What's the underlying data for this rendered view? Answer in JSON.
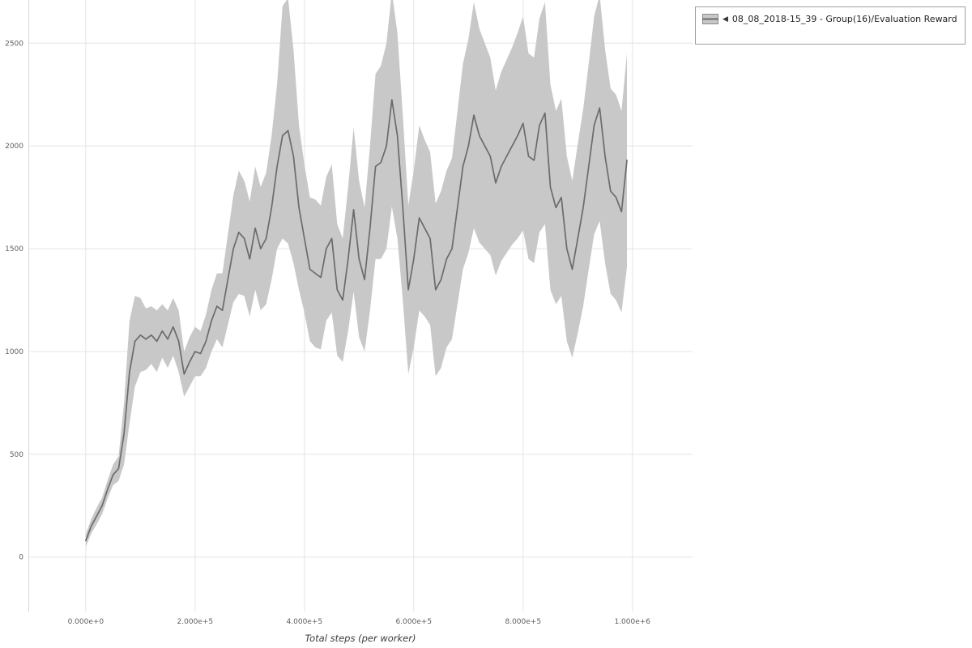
{
  "legend": {
    "collapse_icon": "◀",
    "label": "08_08_2018-15_39 - Group(16)/Evaluation Reward"
  },
  "colors": {
    "grid": "#e4e4e4",
    "spine": "#d8d8d8",
    "tick_text": "#606060",
    "axis_title": "#3c3c3c",
    "legend_border": "#9e9e9e",
    "line": "#6b6b6b",
    "band": "#c8c8c8"
  },
  "chart_data": {
    "type": "line",
    "title": "",
    "xlabel": "Total steps (per worker)",
    "ylabel": "",
    "grid": true,
    "legend_position": "top-right",
    "xlim": [
      -105000,
      1110000
    ],
    "ylim": [
      -265,
      2710
    ],
    "x_ticks": [
      {
        "value": 0,
        "label": "0.000e+0"
      },
      {
        "value": 200000,
        "label": "2.000e+5"
      },
      {
        "value": 400000,
        "label": "4.000e+5"
      },
      {
        "value": 600000,
        "label": "6.000e+5"
      },
      {
        "value": 800000,
        "label": "8.000e+5"
      },
      {
        "value": 1000000,
        "label": "1.000e+6"
      }
    ],
    "y_ticks": [
      {
        "value": 0,
        "label": "0"
      },
      {
        "value": 500,
        "label": "500"
      },
      {
        "value": 1000,
        "label": "1000"
      },
      {
        "value": 1500,
        "label": "1500"
      },
      {
        "value": 2000,
        "label": "2000"
      },
      {
        "value": 2500,
        "label": "2500"
      }
    ],
    "series": [
      {
        "name": "08_08_2018-15_39 - Group(16)/Evaluation Reward",
        "line_color": "#6b6b6b",
        "band_color": "#c8c8c8",
        "x": [
          0,
          10000,
          20000,
          30000,
          40000,
          50000,
          60000,
          70000,
          80000,
          90000,
          100000,
          110000,
          120000,
          130000,
          140000,
          150000,
          160000,
          170000,
          180000,
          190000,
          200000,
          210000,
          220000,
          230000,
          240000,
          250000,
          260000,
          270000,
          280000,
          290000,
          300000,
          310000,
          320000,
          330000,
          340000,
          350000,
          360000,
          370000,
          380000,
          390000,
          400000,
          410000,
          420000,
          430000,
          440000,
          450000,
          460000,
          470000,
          480000,
          490000,
          500000,
          510000,
          520000,
          530000,
          540000,
          550000,
          560000,
          570000,
          580000,
          590000,
          600000,
          610000,
          620000,
          630000,
          640000,
          650000,
          660000,
          670000,
          680000,
          690000,
          700000,
          710000,
          720000,
          730000,
          740000,
          750000,
          760000,
          770000,
          780000,
          790000,
          800000,
          810000,
          820000,
          830000,
          840000,
          850000,
          860000,
          870000,
          880000,
          890000,
          900000,
          910000,
          920000,
          930000,
          940000,
          950000,
          960000,
          970000,
          980000,
          990000
        ],
        "mean": [
          80,
          150,
          200,
          250,
          330,
          400,
          430,
          600,
          900,
          1050,
          1080,
          1060,
          1080,
          1050,
          1100,
          1060,
          1120,
          1050,
          890,
          950,
          1000,
          990,
          1050,
          1150,
          1220,
          1200,
          1350,
          1500,
          1580,
          1550,
          1450,
          1600,
          1500,
          1550,
          1700,
          1900,
          2050,
          2075,
          1950,
          1700,
          1550,
          1400,
          1380,
          1360,
          1500,
          1550,
          1300,
          1250,
          1450,
          1690,
          1450,
          1350,
          1600,
          1900,
          1920,
          2000,
          2225,
          2050,
          1700,
          1300,
          1450,
          1650,
          1600,
          1550,
          1300,
          1350,
          1450,
          1500,
          1700,
          1900,
          2000,
          2150,
          2050,
          2000,
          1950,
          1820,
          1900,
          1950,
          2000,
          2050,
          2110,
          1950,
          1930,
          2100,
          2160,
          1800,
          1700,
          1750,
          1500,
          1400,
          1550,
          1700,
          1900,
          2100,
          2185,
          1950,
          1780,
          1750,
          1680,
          1930
        ],
        "band_lower": [
          50,
          115,
          160,
          210,
          285,
          350,
          370,
          450,
          650,
          830,
          900,
          910,
          940,
          900,
          970,
          920,
          980,
          900,
          780,
          830,
          880,
          880,
          920,
          1000,
          1060,
          1020,
          1130,
          1240,
          1280,
          1270,
          1170,
          1300,
          1200,
          1230,
          1350,
          1500,
          1550,
          1525,
          1430,
          1300,
          1190,
          1050,
          1020,
          1010,
          1150,
          1190,
          980,
          950,
          1100,
          1290,
          1070,
          1000,
          1200,
          1450,
          1450,
          1500,
          1705,
          1550,
          1250,
          890,
          1020,
          1200,
          1170,
          1130,
          880,
          920,
          1020,
          1060,
          1230,
          1400,
          1480,
          1600,
          1530,
          1500,
          1470,
          1370,
          1440,
          1480,
          1520,
          1550,
          1590,
          1450,
          1430,
          1580,
          1620,
          1300,
          1230,
          1270,
          1050,
          970,
          1090,
          1220,
          1400,
          1570,
          1635,
          1430,
          1280,
          1250,
          1190,
          1410
        ],
        "band_upper": [
          110,
          185,
          240,
          290,
          375,
          450,
          490,
          750,
          1150,
          1270,
          1260,
          1210,
          1220,
          1200,
          1230,
          1200,
          1260,
          1200,
          1000,
          1070,
          1120,
          1100,
          1180,
          1300,
          1380,
          1380,
          1570,
          1760,
          1880,
          1830,
          1730,
          1900,
          1800,
          1870,
          2050,
          2300,
          2680,
          2720,
          2470,
          2100,
          1910,
          1750,
          1740,
          1710,
          1850,
          1910,
          1620,
          1550,
          1800,
          2090,
          1830,
          1700,
          2000,
          2350,
          2390,
          2500,
          2750,
          2550,
          2150,
          1710,
          1880,
          2100,
          2030,
          1970,
          1720,
          1780,
          1880,
          1940,
          2170,
          2400,
          2520,
          2700,
          2570,
          2500,
          2430,
          2270,
          2360,
          2420,
          2480,
          2550,
          2630,
          2450,
          2430,
          2620,
          2700,
          2300,
          2170,
          2230,
          1950,
          1830,
          2010,
          2180,
          2400,
          2630,
          2735,
          2470,
          2280,
          2250,
          2170,
          2450
        ]
      }
    ]
  }
}
